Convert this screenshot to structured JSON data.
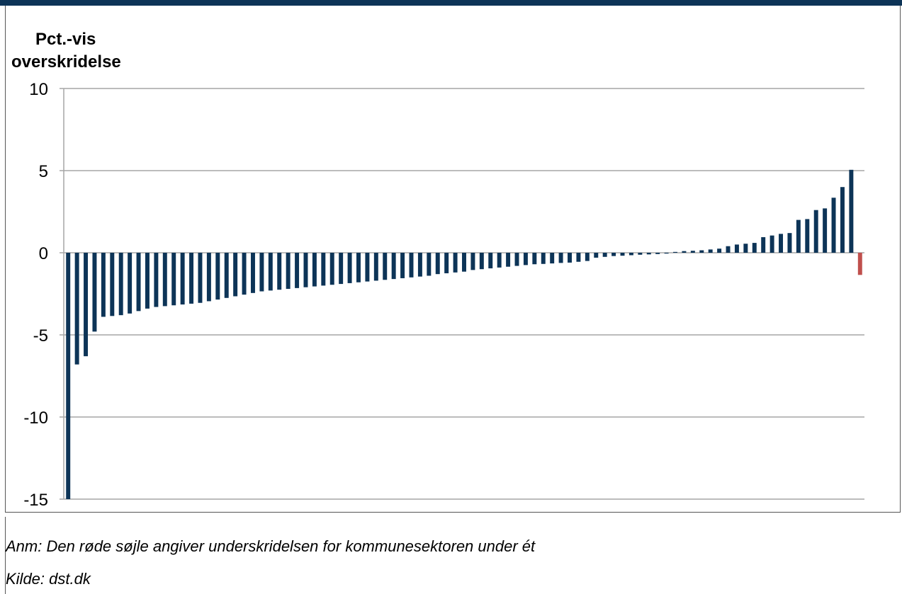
{
  "chart_data": {
    "type": "bar",
    "ylabel": "Pct.-vis overskridelse",
    "ylabel_lines": [
      "Pct.-vis",
      "overskridelse"
    ],
    "ylim": [
      -15,
      10
    ],
    "yticks": [
      10,
      5,
      0,
      -5,
      -10,
      -15
    ],
    "ytick_labels": [
      "10",
      "5",
      "0",
      "-5",
      "-10",
      "-15"
    ],
    "grid": true,
    "colors": {
      "bar": "#0d3457",
      "highlight": "#c0504d",
      "grid": "#a6a6a6"
    },
    "values": [
      -15.0,
      -6.8,
      -6.3,
      -4.8,
      -3.9,
      -3.85,
      -3.8,
      -3.7,
      -3.55,
      -3.4,
      -3.3,
      -3.25,
      -3.2,
      -3.15,
      -3.1,
      -3.05,
      -2.95,
      -2.85,
      -2.75,
      -2.65,
      -2.55,
      -2.45,
      -2.35,
      -2.3,
      -2.25,
      -2.2,
      -2.15,
      -2.1,
      -2.05,
      -2.0,
      -1.95,
      -1.9,
      -1.85,
      -1.8,
      -1.75,
      -1.7,
      -1.65,
      -1.6,
      -1.55,
      -1.5,
      -1.45,
      -1.4,
      -1.3,
      -1.25,
      -1.2,
      -1.15,
      -1.05,
      -1.0,
      -0.95,
      -0.9,
      -0.85,
      -0.8,
      -0.75,
      -0.7,
      -0.68,
      -0.65,
      -0.62,
      -0.6,
      -0.55,
      -0.5,
      -0.3,
      -0.25,
      -0.2,
      -0.18,
      -0.15,
      -0.12,
      -0.1,
      -0.08,
      -0.05,
      0.05,
      0.1,
      0.12,
      0.15,
      0.2,
      0.25,
      0.4,
      0.5,
      0.55,
      0.6,
      0.95,
      1.05,
      1.15,
      1.2,
      2.0,
      2.05,
      2.6,
      2.7,
      3.35,
      4.0,
      5.05,
      -1.35
    ],
    "highlight_index": 90
  },
  "notes": {
    "anm": "Anm: Den røde søjle angiver underskridelsen for kommunesektoren under ét",
    "kilde": "Kilde: dst.dk"
  }
}
